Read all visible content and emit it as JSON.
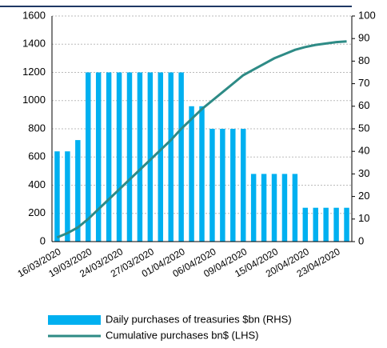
{
  "chart_data": {
    "type": "bar_line",
    "categories": [
      "16/03/2020",
      null,
      null,
      "19/03/2020",
      null,
      null,
      "24/03/2020",
      null,
      null,
      "27/03/2020",
      null,
      null,
      "01/04/2020",
      null,
      null,
      "06/04/2020",
      null,
      null,
      "09/04/2020",
      null,
      null,
      "15/04/2020",
      null,
      null,
      "20/04/2020",
      null,
      null,
      "23/04/2020",
      null
    ],
    "series": [
      {
        "name": "Daily purchases of treasuries $bn (RHS)",
        "type": "bar",
        "axis": "y2",
        "color": "#00b0f0",
        "values": [
          40,
          40,
          45,
          75,
          75,
          75,
          75,
          75,
          75,
          75,
          75,
          75,
          75,
          60,
          60,
          50,
          50,
          50,
          50,
          30,
          30,
          30,
          30,
          30,
          15,
          15,
          15,
          15,
          15
        ]
      },
      {
        "name": "Cumulative purchases bn$ (LHS)",
        "type": "line",
        "color": "#2e8b86",
        "values": [
          30,
          60,
          100,
          160,
          230,
          300,
          370,
          440,
          510,
          580,
          650,
          720,
          800,
          870,
          940,
          1000,
          1060,
          1120,
          1180,
          1220,
          1260,
          1300,
          1330,
          1360,
          1380,
          1395,
          1405,
          1415,
          1420
        ]
      }
    ],
    "ylim": [
      0,
      1600
    ],
    "yticks": [
      0,
      200,
      400,
      600,
      800,
      1000,
      1200,
      1400,
      1600
    ],
    "y2lim": [
      0,
      100
    ],
    "y2ticks": [
      0,
      10,
      20,
      30,
      40,
      50,
      60,
      70,
      80,
      90,
      100
    ],
    "grid": true
  }
}
